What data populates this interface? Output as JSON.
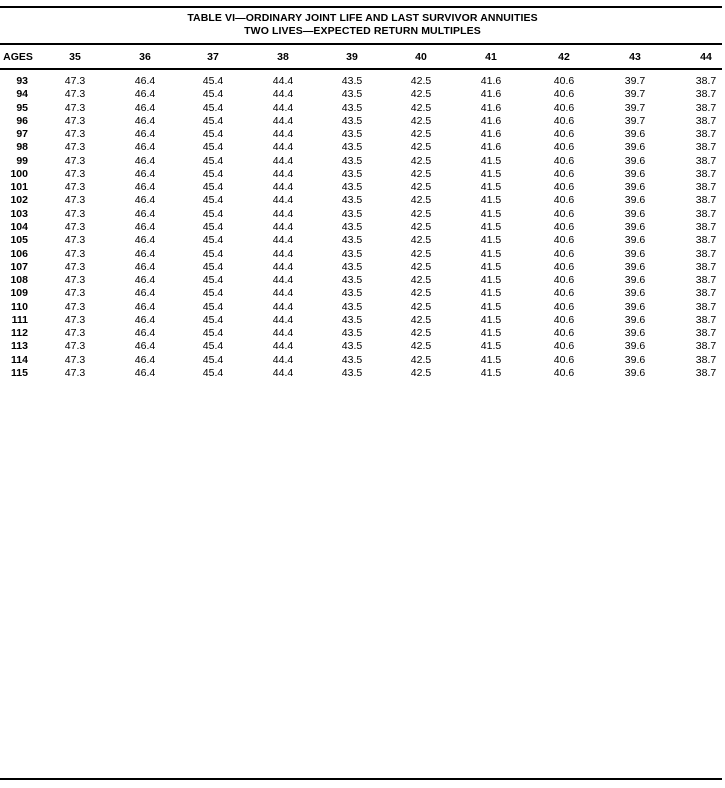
{
  "table": {
    "title": "TABLE VI—ORDINARY JOINT LIFE AND LAST SURVIVOR ANNUITIES",
    "subtitle": "TWO LIVES—EXPECTED RETURN MULTIPLES",
    "columns": [
      "AGES",
      "35",
      "36",
      "37",
      "38",
      "39",
      "40",
      "41",
      "42",
      "43",
      "44"
    ],
    "rows": [
      [
        "93",
        "47.3",
        "46.4",
        "45.4",
        "44.4",
        "43.5",
        "42.5",
        "41.6",
        "40.6",
        "39.7",
        "38.7"
      ],
      [
        "94",
        "47.3",
        "46.4",
        "45.4",
        "44.4",
        "43.5",
        "42.5",
        "41.6",
        "40.6",
        "39.7",
        "38.7"
      ],
      [
        "95",
        "47.3",
        "46.4",
        "45.4",
        "44.4",
        "43.5",
        "42.5",
        "41.6",
        "40.6",
        "39.7",
        "38.7"
      ],
      [
        "96",
        "47.3",
        "46.4",
        "45.4",
        "44.4",
        "43.5",
        "42.5",
        "41.6",
        "40.6",
        "39.7",
        "38.7"
      ],
      [
        "97",
        "47.3",
        "46.4",
        "45.4",
        "44.4",
        "43.5",
        "42.5",
        "41.6",
        "40.6",
        "39.6",
        "38.7"
      ],
      [
        "98",
        "47.3",
        "46.4",
        "45.4",
        "44.4",
        "43.5",
        "42.5",
        "41.6",
        "40.6",
        "39.6",
        "38.7"
      ],
      [
        "99",
        "47.3",
        "46.4",
        "45.4",
        "44.4",
        "43.5",
        "42.5",
        "41.5",
        "40.6",
        "39.6",
        "38.7"
      ],
      [
        "100",
        "47.3",
        "46.4",
        "45.4",
        "44.4",
        "43.5",
        "42.5",
        "41.5",
        "40.6",
        "39.6",
        "38.7"
      ],
      [
        "101",
        "47.3",
        "46.4",
        "45.4",
        "44.4",
        "43.5",
        "42.5",
        "41.5",
        "40.6",
        "39.6",
        "38.7"
      ],
      [
        "102",
        "47.3",
        "46.4",
        "45.4",
        "44.4",
        "43.5",
        "42.5",
        "41.5",
        "40.6",
        "39.6",
        "38.7"
      ],
      [
        "103",
        "47.3",
        "46.4",
        "45.4",
        "44.4",
        "43.5",
        "42.5",
        "41.5",
        "40.6",
        "39.6",
        "38.7"
      ],
      [
        "104",
        "47.3",
        "46.4",
        "45.4",
        "44.4",
        "43.5",
        "42.5",
        "41.5",
        "40.6",
        "39.6",
        "38.7"
      ],
      [
        "105",
        "47.3",
        "46.4",
        "45.4",
        "44.4",
        "43.5",
        "42.5",
        "41.5",
        "40.6",
        "39.6",
        "38.7"
      ],
      [
        "106",
        "47.3",
        "46.4",
        "45.4",
        "44.4",
        "43.5",
        "42.5",
        "41.5",
        "40.6",
        "39.6",
        "38.7"
      ],
      [
        "107",
        "47.3",
        "46.4",
        "45.4",
        "44.4",
        "43.5",
        "42.5",
        "41.5",
        "40.6",
        "39.6",
        "38.7"
      ],
      [
        "108",
        "47.3",
        "46.4",
        "45.4",
        "44.4",
        "43.5",
        "42.5",
        "41.5",
        "40.6",
        "39.6",
        "38.7"
      ],
      [
        "109",
        "47.3",
        "46.4",
        "45.4",
        "44.4",
        "43.5",
        "42.5",
        "41.5",
        "40.6",
        "39.6",
        "38.7"
      ],
      [
        "110",
        "47.3",
        "46.4",
        "45.4",
        "44.4",
        "43.5",
        "42.5",
        "41.5",
        "40.6",
        "39.6",
        "38.7"
      ],
      [
        "111",
        "47.3",
        "46.4",
        "45.4",
        "44.4",
        "43.5",
        "42.5",
        "41.5",
        "40.6",
        "39.6",
        "38.7"
      ],
      [
        "112",
        "47.3",
        "46.4",
        "45.4",
        "44.4",
        "43.5",
        "42.5",
        "41.5",
        "40.6",
        "39.6",
        "38.7"
      ],
      [
        "113",
        "47.3",
        "46.4",
        "45.4",
        "44.4",
        "43.5",
        "42.5",
        "41.5",
        "40.6",
        "39.6",
        "38.7"
      ],
      [
        "114",
        "47.3",
        "46.4",
        "45.4",
        "44.4",
        "43.5",
        "42.5",
        "41.5",
        "40.6",
        "39.6",
        "38.7"
      ],
      [
        "115",
        "47.3",
        "46.4",
        "45.4",
        "44.4",
        "43.5",
        "42.5",
        "41.5",
        "40.6",
        "39.6",
        "38.7"
      ]
    ]
  }
}
